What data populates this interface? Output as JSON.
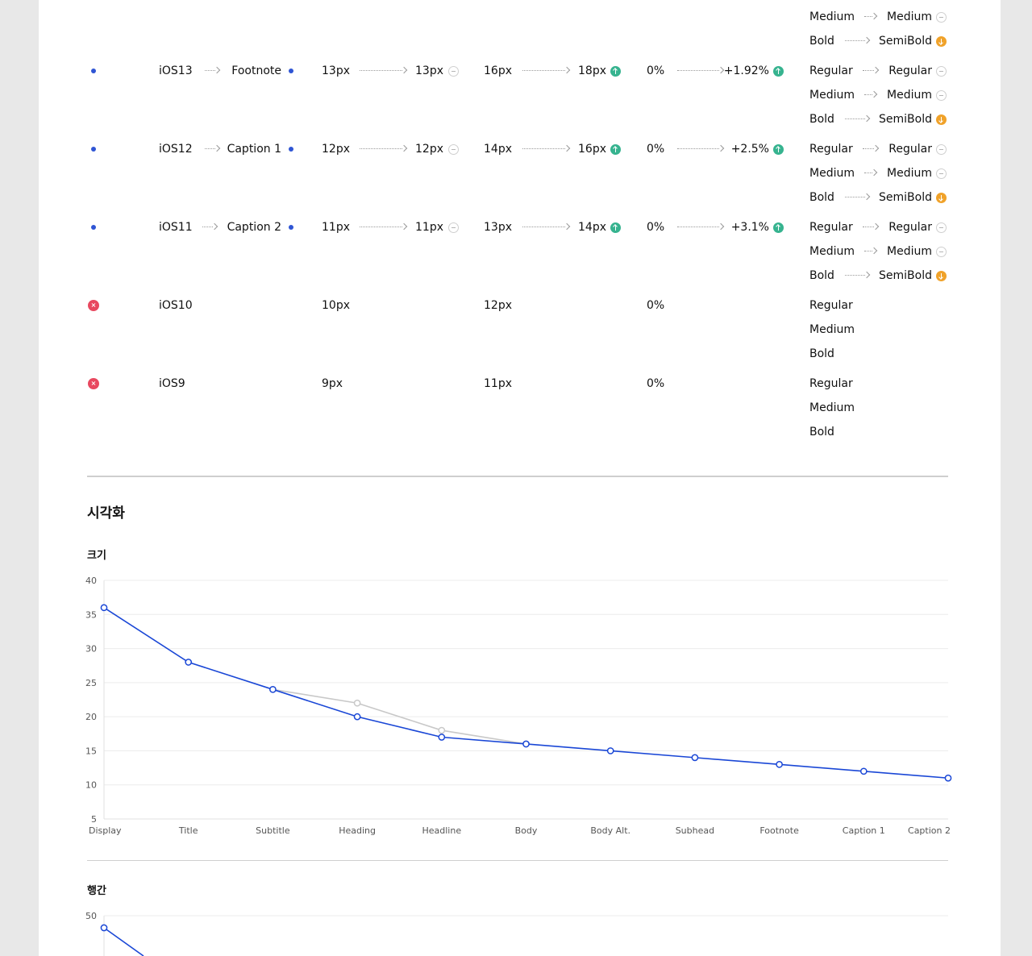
{
  "rows": [
    {
      "status": "supported",
      "name_from": "iOS13",
      "name_to": "Footnote",
      "size_from": "13px",
      "size_to": "13px",
      "size_change": "same",
      "lh_from": "16px",
      "lh_to": "18px",
      "lh_change": "up",
      "ls_from": "0%",
      "ls_to": "+1.92%",
      "ls_change": "up",
      "weights": [
        {
          "from": "Regular",
          "to": "Regular",
          "change": "same"
        },
        {
          "from": "Medium",
          "to": "Medium",
          "change": "same"
        },
        {
          "from": "Bold",
          "to": "SemiBold",
          "change": "down"
        }
      ]
    },
    {
      "status": "supported",
      "name_from": "iOS12",
      "name_to": "Caption 1",
      "size_from": "12px",
      "size_to": "12px",
      "size_change": "same",
      "lh_from": "14px",
      "lh_to": "16px",
      "lh_change": "up",
      "ls_from": "0%",
      "ls_to": "+2.5%",
      "ls_change": "up",
      "weights": [
        {
          "from": "Regular",
          "to": "Regular",
          "change": "same"
        },
        {
          "from": "Medium",
          "to": "Medium",
          "change": "same"
        },
        {
          "from": "Bold",
          "to": "SemiBold",
          "change": "down"
        }
      ]
    },
    {
      "status": "supported",
      "name_from": "iOS11",
      "name_to": "Caption 2",
      "size_from": "11px",
      "size_to": "11px",
      "size_change": "same",
      "lh_from": "13px",
      "lh_to": "14px",
      "lh_change": "up",
      "ls_from": "0%",
      "ls_to": "+3.1%",
      "ls_change": "up",
      "weights": [
        {
          "from": "Regular",
          "to": "Regular",
          "change": "same"
        },
        {
          "from": "Medium",
          "to": "Medium",
          "change": "same"
        },
        {
          "from": "Bold",
          "to": "SemiBold",
          "change": "down"
        }
      ]
    },
    {
      "status": "removed",
      "name_from": "iOS10",
      "size_from": "10px",
      "lh_from": "12px",
      "ls_from": "0%",
      "weights": [
        {
          "from": "Regular"
        },
        {
          "from": "Medium"
        },
        {
          "from": "Bold"
        }
      ]
    },
    {
      "status": "removed",
      "name_from": "iOS9",
      "size_from": "9px",
      "lh_from": "11px",
      "ls_from": "0%",
      "weights": [
        {
          "from": "Regular"
        },
        {
          "from": "Medium"
        },
        {
          "from": "Bold"
        }
      ]
    }
  ],
  "top_partial": [
    {
      "from": "Medium",
      "to": "Medium",
      "change": "same"
    },
    {
      "from": "Bold",
      "to": "SemiBold",
      "change": "down"
    }
  ],
  "remove_icon_glyph": "×",
  "section_title": "시각화",
  "chart_size_title": "크기",
  "chart_lh_title": "행간",
  "colors": {
    "new_series": "#1a47d6",
    "old_series": "#c8c8c8",
    "up": "#36b38f",
    "down": "#f0a22a",
    "removed": "#e8485f",
    "dot": "#2f55d4"
  },
  "chart_data": [
    {
      "type": "line",
      "title": "크기",
      "categories": [
        "Display",
        "Title",
        "Subtitle",
        "Heading",
        "Headline",
        "Body",
        "Body Alt.",
        "Subhead",
        "Footnote",
        "Caption 1",
        "Caption 2"
      ],
      "series": [
        {
          "values": [
            36,
            28,
            24,
            20,
            17,
            16,
            15,
            14,
            13,
            12,
            11
          ]
        },
        {
          "values": [
            null,
            null,
            24,
            22,
            18,
            16,
            null,
            null,
            null,
            null,
            null
          ]
        }
      ],
      "yticks": [
        5,
        10,
        15,
        20,
        25,
        30,
        35,
        40
      ],
      "ylim": [
        5,
        40
      ],
      "grid": true
    },
    {
      "type": "line",
      "title": "행간",
      "yticks": [
        50
      ],
      "series": [
        {
          "values": [
            48
          ]
        }
      ]
    }
  ]
}
